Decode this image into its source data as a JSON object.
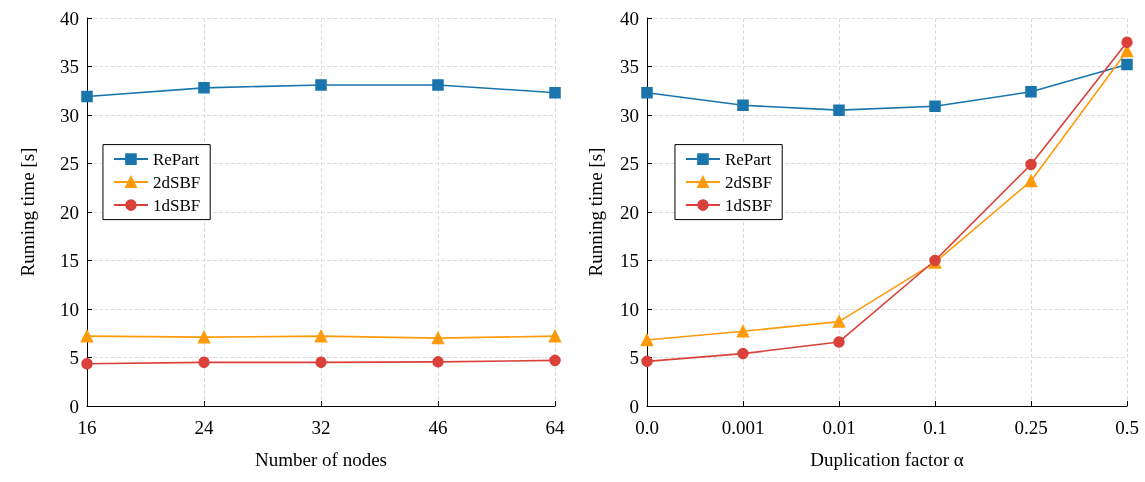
{
  "chart_data": [
    {
      "type": "line",
      "xlabel": "Number of nodes",
      "ylabel": "Running time [s]",
      "categories": [
        "16",
        "24",
        "32",
        "46",
        "64"
      ],
      "ylim": [
        0,
        40
      ],
      "yticks": [
        0,
        5,
        10,
        15,
        20,
        25,
        30,
        35,
        40
      ],
      "grid": true,
      "legend": "left",
      "series": [
        {
          "name": "RePart",
          "color": "#1a75ad",
          "marker": "square",
          "values": [
            31.9,
            32.8,
            33.1,
            33.1,
            32.3
          ]
        },
        {
          "name": "2dSBF",
          "color": "#ff9a0a",
          "marker": "triangle",
          "values": [
            7.2,
            7.1,
            7.2,
            7.0,
            7.2
          ]
        },
        {
          "name": "1dSBF",
          "color": "#d9413a",
          "marker": "circle",
          "values": [
            4.35,
            4.5,
            4.5,
            4.55,
            4.7
          ]
        }
      ]
    },
    {
      "type": "line",
      "xlabel": "Duplication factor α",
      "ylabel": "Running time [s]",
      "categories": [
        "0.0",
        "0.001",
        "0.01",
        "0.1",
        "0.25",
        "0.5"
      ],
      "ylim": [
        0,
        40
      ],
      "yticks": [
        0,
        5,
        10,
        15,
        20,
        25,
        30,
        35,
        40
      ],
      "grid": true,
      "legend": "left",
      "series": [
        {
          "name": "RePart",
          "color": "#1a75ad",
          "marker": "square",
          "values": [
            32.3,
            31.0,
            30.5,
            30.9,
            32.4,
            35.2
          ]
        },
        {
          "name": "2dSBF",
          "color": "#ff9a0a",
          "marker": "triangle",
          "values": [
            6.8,
            7.7,
            8.7,
            14.8,
            23.2,
            36.6
          ]
        },
        {
          "name": "1dSBF",
          "color": "#d9413a",
          "marker": "circle",
          "values": [
            4.6,
            5.4,
            6.6,
            15.0,
            24.9,
            37.5
          ]
        }
      ]
    }
  ]
}
